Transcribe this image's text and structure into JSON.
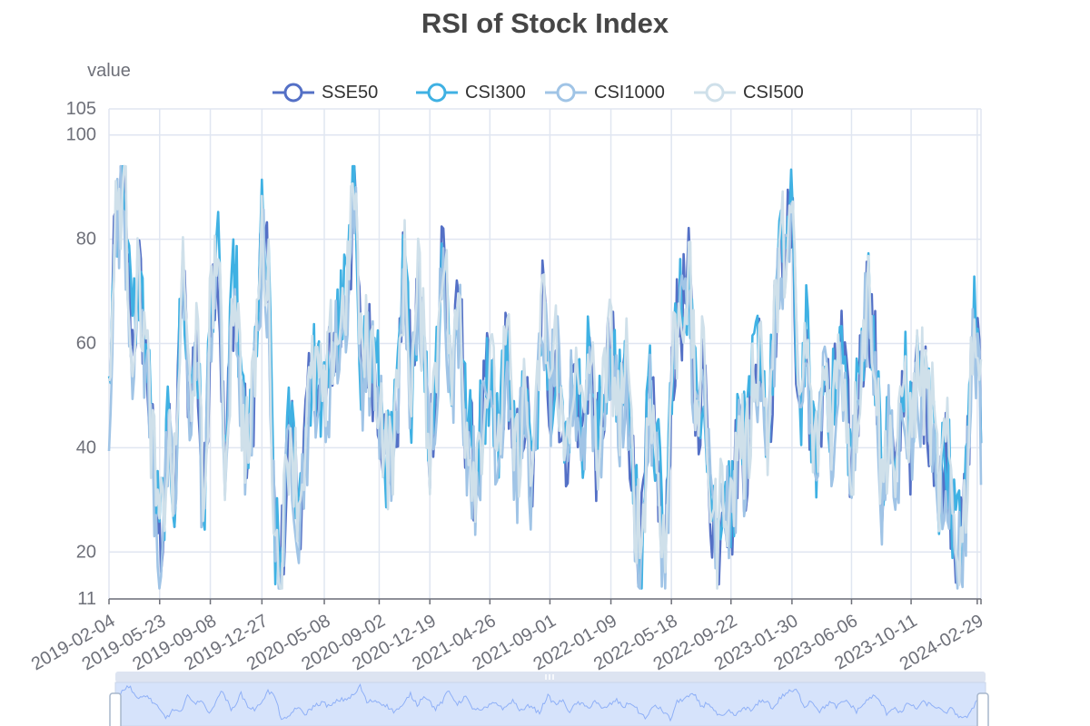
{
  "chart_data": {
    "type": "line",
    "title": "RSI of Stock Index",
    "ylabel": "value",
    "ylim": [
      11,
      105
    ],
    "y_ticks": [
      20,
      40,
      60,
      80,
      100
    ],
    "y_ticks_extra": [
      11,
      105
    ],
    "x_tick_labels": [
      "2019-02-04",
      "2019-05-23",
      "2019-09-08",
      "2019-12-27",
      "2020-05-08",
      "2020-09-02",
      "2020-12-19",
      "2021-04-26",
      "2021-09-01",
      "2022-01-09",
      "2022-05-18",
      "2022-09-22",
      "2023-01-30",
      "2023-06-06",
      "2023-10-11",
      "2024-02-29"
    ],
    "legend_position": "top",
    "grid": true,
    "series": [
      {
        "name": "SSE50",
        "color": "#5470c6"
      },
      {
        "name": "CSI300",
        "color": "#3fb1e3"
      },
      {
        "name": "CSI1000",
        "color": "#a0c4e6"
      },
      {
        "name": "CSI500",
        "color": "#cfe0ea"
      }
    ],
    "x_range": [
      "2019-02-04",
      "2024-03-08"
    ],
    "anchors": [
      [
        "2019-02-04",
        50
      ],
      [
        "2019-02-20",
        85
      ],
      [
        "2019-03-08",
        90
      ],
      [
        "2019-03-25",
        60
      ],
      [
        "2019-04-10",
        72
      ],
      [
        "2019-04-30",
        50
      ],
      [
        "2019-05-15",
        30
      ],
      [
        "2019-05-23",
        20
      ],
      [
        "2019-06-10",
        40
      ],
      [
        "2019-06-25",
        30
      ],
      [
        "2019-07-10",
        75
      ],
      [
        "2019-07-25",
        50
      ],
      [
        "2019-08-10",
        60
      ],
      [
        "2019-08-25",
        25
      ],
      [
        "2019-09-08",
        65
      ],
      [
        "2019-09-22",
        80
      ],
      [
        "2019-10-10",
        35
      ],
      [
        "2019-10-30",
        75
      ],
      [
        "2019-11-15",
        45
      ],
      [
        "2019-12-01",
        38
      ],
      [
        "2019-12-27",
        80
      ],
      [
        "2020-01-10",
        70
      ],
      [
        "2020-01-24",
        20
      ],
      [
        "2020-02-05",
        15
      ],
      [
        "2020-02-25",
        45
      ],
      [
        "2020-03-15",
        28
      ],
      [
        "2020-04-01",
        45
      ],
      [
        "2020-04-20",
        55
      ],
      [
        "2020-05-08",
        45
      ],
      [
        "2020-05-25",
        60
      ],
      [
        "2020-06-10",
        62
      ],
      [
        "2020-06-25",
        70
      ],
      [
        "2020-07-05",
        80
      ],
      [
        "2020-07-10",
        95
      ],
      [
        "2020-07-25",
        55
      ],
      [
        "2020-08-10",
        60
      ],
      [
        "2020-09-02",
        50
      ],
      [
        "2020-09-20",
        35
      ],
      [
        "2020-10-10",
        45
      ],
      [
        "2020-10-25",
        75
      ],
      [
        "2020-11-10",
        50
      ],
      [
        "2020-11-25",
        72
      ],
      [
        "2020-12-19",
        40
      ],
      [
        "2021-01-05",
        60
      ],
      [
        "2021-01-15",
        82
      ],
      [
        "2021-02-05",
        50
      ],
      [
        "2021-02-20",
        70
      ],
      [
        "2021-03-05",
        45
      ],
      [
        "2021-03-25",
        35
      ],
      [
        "2021-04-26",
        55
      ],
      [
        "2021-05-15",
        40
      ],
      [
        "2021-06-01",
        60
      ],
      [
        "2021-06-20",
        35
      ],
      [
        "2021-07-10",
        50
      ],
      [
        "2021-07-28",
        30
      ],
      [
        "2021-08-15",
        70
      ],
      [
        "2021-09-01",
        50
      ],
      [
        "2021-09-15",
        60
      ],
      [
        "2021-10-01",
        35
      ],
      [
        "2021-10-20",
        55
      ],
      [
        "2021-11-10",
        42
      ],
      [
        "2021-11-25",
        60
      ],
      [
        "2021-12-10",
        38
      ],
      [
        "2022-01-09",
        60
      ],
      [
        "2022-01-25",
        45
      ],
      [
        "2022-02-10",
        55
      ],
      [
        "2022-03-01",
        30
      ],
      [
        "2022-03-15",
        20
      ],
      [
        "2022-04-01",
        50
      ],
      [
        "2022-04-25",
        30
      ],
      [
        "2022-05-05",
        15
      ],
      [
        "2022-05-18",
        55
      ],
      [
        "2022-06-05",
        65
      ],
      [
        "2022-06-25",
        72
      ],
      [
        "2022-07-10",
        45
      ],
      [
        "2022-07-25",
        55
      ],
      [
        "2022-08-10",
        30
      ],
      [
        "2022-08-25",
        20
      ],
      [
        "2022-09-05",
        35
      ],
      [
        "2022-09-22",
        25
      ],
      [
        "2022-10-10",
        45
      ],
      [
        "2022-10-25",
        35
      ],
      [
        "2022-11-10",
        55
      ],
      [
        "2022-11-25",
        60
      ],
      [
        "2022-12-10",
        40
      ],
      [
        "2022-12-25",
        65
      ],
      [
        "2023-01-10",
        78
      ],
      [
        "2023-01-30",
        82
      ],
      [
        "2023-02-15",
        45
      ],
      [
        "2023-03-01",
        60
      ],
      [
        "2023-03-20",
        35
      ],
      [
        "2023-04-10",
        55
      ],
      [
        "2023-04-25",
        45
      ],
      [
        "2023-05-15",
        60
      ],
      [
        "2023-06-06",
        35
      ],
      [
        "2023-06-25",
        55
      ],
      [
        "2023-07-10",
        70
      ],
      [
        "2023-07-25",
        60
      ],
      [
        "2023-08-10",
        30
      ],
      [
        "2023-08-25",
        45
      ],
      [
        "2023-09-10",
        30
      ],
      [
        "2023-09-25",
        55
      ],
      [
        "2023-10-11",
        40
      ],
      [
        "2023-10-25",
        55
      ],
      [
        "2023-11-10",
        50
      ],
      [
        "2023-11-25",
        45
      ],
      [
        "2023-12-10",
        30
      ],
      [
        "2023-12-25",
        40
      ],
      [
        "2024-01-10",
        25
      ],
      [
        "2024-01-25",
        20
      ],
      [
        "2024-02-05",
        30
      ],
      [
        "2024-02-20",
        65
      ],
      [
        "2024-02-29",
        60
      ],
      [
        "2024-03-08",
        45
      ]
    ]
  }
}
